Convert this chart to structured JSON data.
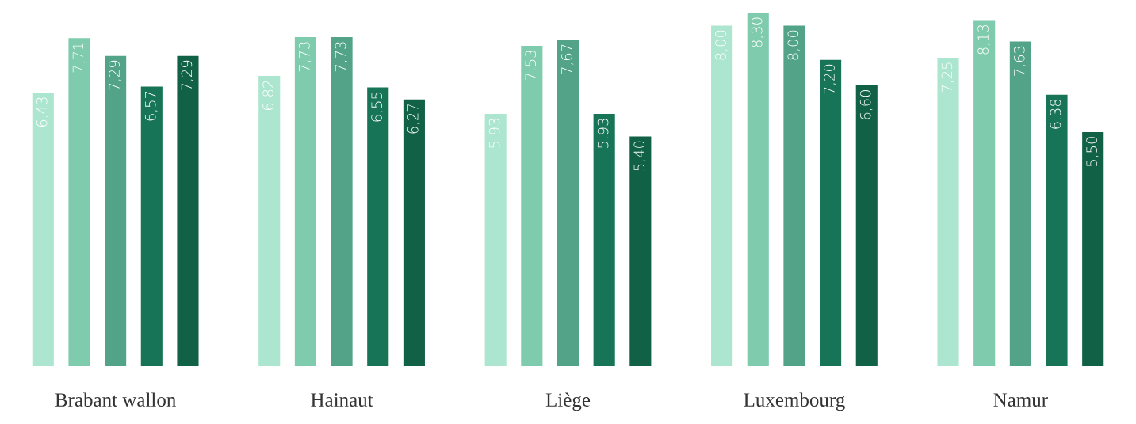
{
  "chart_data": {
    "type": "bar",
    "categories": [
      "Brabant wallon",
      "Hainaut",
      "Liège",
      "Luxembourg",
      "Namur"
    ],
    "series": [
      {
        "color": "#ade6d0",
        "values": [
          6.43,
          6.82,
          5.93,
          8.0,
          7.25
        ],
        "value_labels": [
          "6,43",
          "6,82",
          "5,93",
          "8,00",
          "7,25"
        ]
      },
      {
        "color": "#7fcbad",
        "values": [
          7.71,
          7.73,
          7.53,
          8.3,
          8.13
        ],
        "value_labels": [
          "7,71",
          "7,73",
          "7,53",
          "8,30",
          "8,13"
        ]
      },
      {
        "color": "#52a387",
        "values": [
          7.29,
          7.73,
          7.67,
          8.0,
          7.63
        ],
        "value_labels": [
          "7,29",
          "7,73",
          "7,67",
          "8,00",
          "7,63"
        ]
      },
      {
        "color": "#187456",
        "values": [
          6.57,
          6.55,
          5.93,
          7.2,
          6.38
        ],
        "value_labels": [
          "6,57",
          "6,55",
          "5,93",
          "7,20",
          "6,38"
        ]
      },
      {
        "color": "#116146",
        "values": [
          7.29,
          6.27,
          5.4,
          6.6,
          5.5
        ],
        "value_labels": [
          "7,29",
          "6,27",
          "5,40",
          "6,60",
          "5,50"
        ]
      }
    ]
  }
}
